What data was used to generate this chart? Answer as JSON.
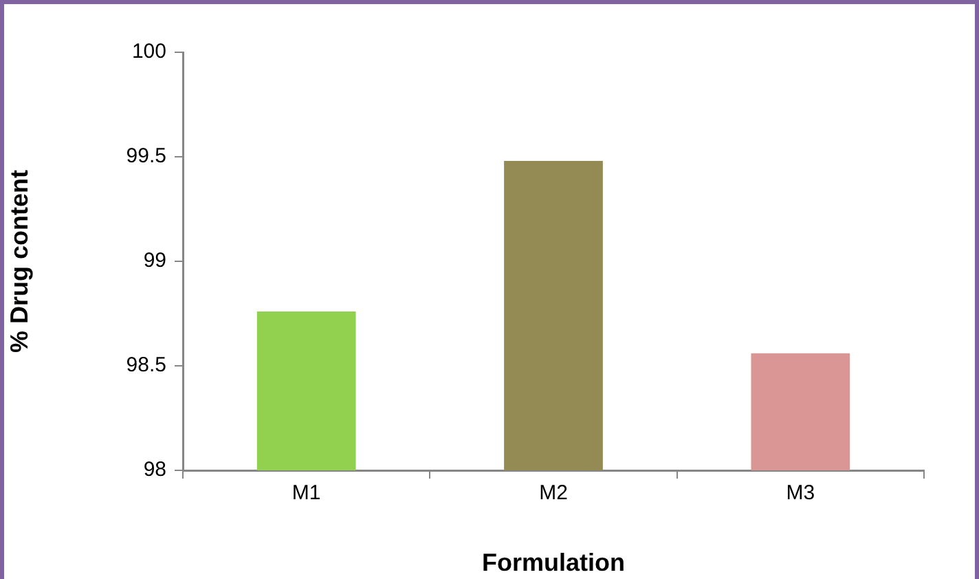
{
  "chart_data": {
    "type": "bar",
    "xlabel": "Formulation",
    "ylabel": "% Drug content",
    "categories": [
      "M1",
      "M2",
      "M3"
    ],
    "values": [
      98.76,
      99.48,
      98.56
    ],
    "colors": [
      "#92d050",
      "#948a54",
      "#d99694"
    ],
    "ylim": [
      98,
      100
    ],
    "yticks": [
      98,
      98.5,
      99,
      99.5,
      100
    ],
    "grid": false,
    "legend": false
  }
}
